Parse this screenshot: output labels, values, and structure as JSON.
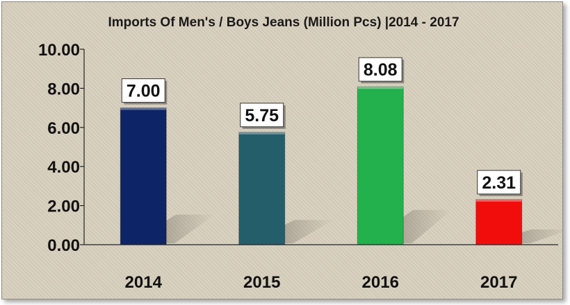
{
  "chart_data": {
    "type": "bar",
    "title": "Imports Of Men's / Boys Jeans (Million Pcs) |2014 - 2017",
    "categories": [
      "2014",
      "2015",
      "2016",
      "2017"
    ],
    "values": [
      7.0,
      5.75,
      8.08,
      2.31
    ],
    "data_labels": [
      "7.00",
      "5.75",
      "8.08",
      "2.31"
    ],
    "yticks": [
      "0.00",
      "2.00",
      "4.00",
      "6.00",
      "8.00",
      "10.00"
    ],
    "ylim": [
      0,
      10
    ],
    "xlabel": "",
    "ylabel": "",
    "grid": false,
    "legend": "none",
    "colors": {
      "bars": [
        "#0d2466",
        "#245e6b",
        "#22b14c",
        "#f20d0d"
      ],
      "background": "#d9d0bd",
      "axis": "#222222",
      "label_box": "#ffffff"
    }
  }
}
